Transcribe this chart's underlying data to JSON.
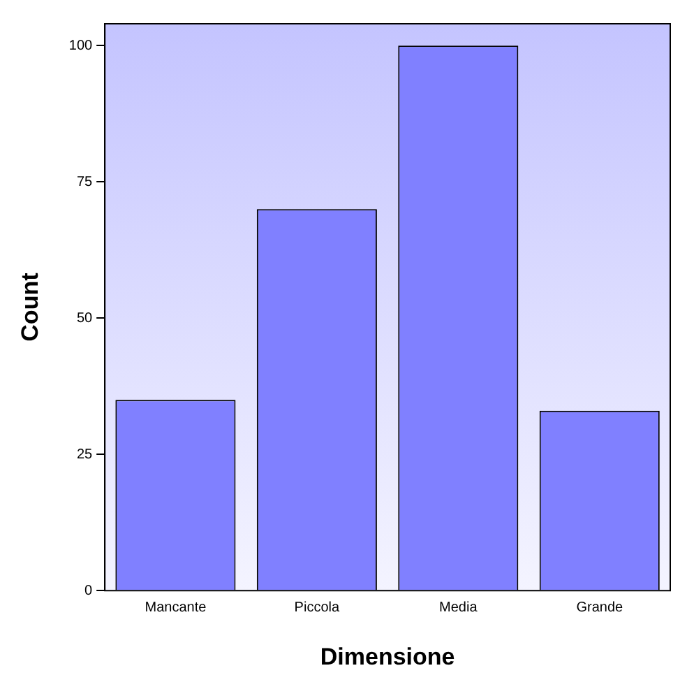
{
  "chart_data": {
    "type": "bar",
    "xlabel": "Dimensione",
    "ylabel": "Count",
    "categories": [
      "Mancante",
      "Piccola",
      "Media",
      "Grande"
    ],
    "values": [
      35,
      70,
      100,
      33
    ],
    "color": "#8080ff",
    "ylim": [
      0,
      104
    ],
    "yticks": [
      0,
      25,
      50,
      75,
      100
    ],
    "legend": false
  }
}
